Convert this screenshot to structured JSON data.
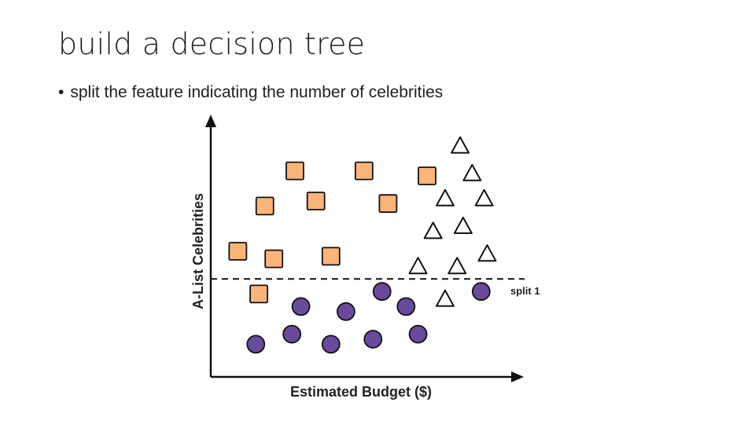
{
  "slide": {
    "title": "build a decision tree",
    "bullet_marker": "•",
    "bullet_text": "split the feature indicating the number of celebrities"
  },
  "colors": {
    "square_fill": "#fbb57a",
    "circle_fill": "#6a4a9c",
    "triangle_fill": "#ffffff",
    "stroke": "#111111"
  },
  "chart_data": {
    "type": "scatter",
    "title": "",
    "xlabel": "Estimated Budget ($)",
    "ylabel": "A-List Celebrities",
    "xlim": [
      0,
      100
    ],
    "ylim": [
      0,
      100
    ],
    "ticks": false,
    "grid": false,
    "series": [
      {
        "name": "square",
        "marker": "square",
        "points": [
          [
            28,
            82
          ],
          [
            51,
            82
          ],
          [
            72,
            80
          ],
          [
            18,
            68
          ],
          [
            35,
            70
          ],
          [
            59,
            69
          ],
          [
            9,
            50
          ],
          [
            21,
            47
          ],
          [
            40,
            48
          ],
          [
            16,
            33
          ]
        ]
      },
      {
        "name": "circle",
        "marker": "circle",
        "points": [
          [
            30,
            28
          ],
          [
            45,
            26
          ],
          [
            57,
            34
          ],
          [
            65,
            28
          ],
          [
            90,
            34
          ],
          [
            15,
            13
          ],
          [
            27,
            17
          ],
          [
            40,
            13
          ],
          [
            54,
            15
          ],
          [
            69,
            17
          ]
        ]
      },
      {
        "name": "triangle",
        "marker": "triangle",
        "points": [
          [
            83,
            92
          ],
          [
            87,
            81
          ],
          [
            78,
            71
          ],
          [
            91,
            71
          ],
          [
            74,
            58
          ],
          [
            84,
            60
          ],
          [
            69,
            44
          ],
          [
            82,
            44
          ],
          [
            92,
            49
          ],
          [
            78,
            31
          ]
        ]
      }
    ],
    "split_lines": [
      {
        "axis": "y",
        "value": 39,
        "label": "split 1"
      }
    ]
  }
}
